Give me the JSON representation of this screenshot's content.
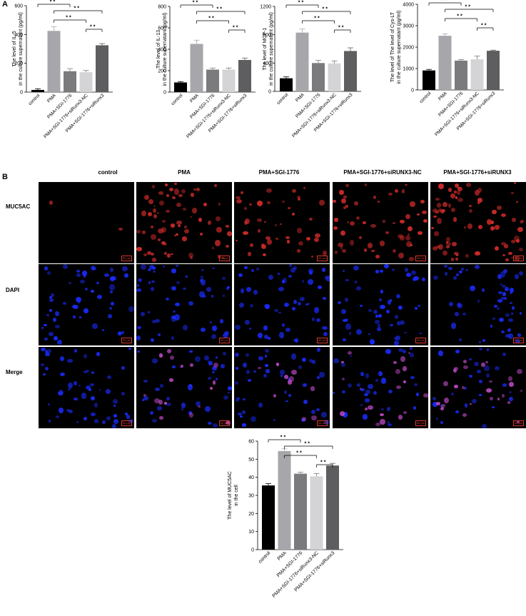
{
  "panel_labels": {
    "a": "A",
    "b": "B"
  },
  "micrograph": {
    "columns": [
      "control",
      "PMA",
      "PMA+SGI-1776",
      "PMA+SGI-1776+siRUNX3-NC",
      "PMA+SGI-1776+siRUNX3"
    ],
    "rows": [
      "MUC5AC",
      "DAPI",
      "Merge"
    ],
    "scale_bar": "50 μm"
  },
  "colors": {
    "control": "#000000",
    "PMA": "#a7a7ab",
    "SGI": "#7b7b7d",
    "NC": "#d4d4d6",
    "siRunx3": "#5e5e60",
    "muc_signal": "#d42c2a",
    "dapi_signal": "#1a2cff",
    "background": "#000000"
  },
  "chart_data": [
    {
      "type": "bar",
      "categories": [
        "control",
        "PMA",
        "PMA+SGI-1776",
        "PMA+SGI-1776+siRunx3-NC",
        "PMA+SGI-1776+siRunx3"
      ],
      "values": [
        15,
        425,
        145,
        138,
        325
      ],
      "errors": [
        8,
        30,
        18,
        12,
        12
      ],
      "ylabel_lines": [
        "The level of IL-5",
        "in the culture supernatant (pg/ml)"
      ],
      "ylim": [
        0,
        600
      ],
      "yticks": [
        0,
        200,
        400,
        600
      ],
      "significance": "* *"
    },
    {
      "type": "bar",
      "categories": [
        "control",
        "PMA",
        "PMA+SGI-1776",
        "PMA+SGI-1776+siRunx3-NC",
        "PMA+SGI-1776+siRunx3"
      ],
      "values": [
        90,
        450,
        210,
        210,
        300
      ],
      "errors": [
        8,
        35,
        15,
        15,
        18
      ],
      "ylabel_lines": [
        "The level of IL-13",
        "in the culture supernatant (pg/ml)"
      ],
      "ylim": [
        0,
        800
      ],
      "yticks": [
        0,
        200,
        400,
        600,
        800
      ],
      "significance": "* *"
    },
    {
      "type": "bar",
      "categories": [
        "control",
        "PMA",
        "PMA+SGI-1776",
        "PMA+SGI-1776+siRunx3-NC",
        "PMA+SGI-1776+siRunx3"
      ],
      "values": [
        185,
        830,
        400,
        395,
        570
      ],
      "errors": [
        20,
        50,
        40,
        35,
        45
      ],
      "ylabel_lines": [
        "The level of MCP-1",
        "in the culture supernatant (pg/ml)"
      ],
      "ylim": [
        0,
        1200
      ],
      "yticks": [
        0,
        400,
        800,
        1200
      ],
      "significance": "* *"
    },
    {
      "type": "bar",
      "categories": [
        "control",
        "PMA",
        "PMA+SGI-1776",
        "PMA+SGI-1776+siRunx3-NC",
        "PMA+SGI-1776+siRunx3"
      ],
      "values": [
        910,
        2530,
        1370,
        1430,
        1830
      ],
      "errors": [
        50,
        90,
        50,
        150,
        30
      ],
      "ylabel_lines": [
        "The level of The level of Cys-LT",
        "in the culture supernatant (pg/ml)"
      ],
      "ylim": [
        0,
        4000
      ],
      "yticks": [
        0,
        1000,
        2000,
        3000,
        4000
      ],
      "significance": "* *"
    },
    {
      "type": "bar",
      "categories": [
        "control",
        "PMA",
        "PMA+SGI-1776",
        "PMA+SGI-1776+siRunx3-NC",
        "PMA+SGI-1776+siRunx3"
      ],
      "values": [
        35.5,
        54.5,
        42.0,
        40.5,
        46.5
      ],
      "errors": [
        1.0,
        1.2,
        0.8,
        1.5,
        1.2
      ],
      "ylabel_lines": [
        "The level of MUC5AC",
        "in the cell"
      ],
      "ylim": [
        0,
        60
      ],
      "yticks": [
        0,
        10,
        20,
        30,
        40,
        50,
        60
      ],
      "significance": "* *"
    }
  ]
}
